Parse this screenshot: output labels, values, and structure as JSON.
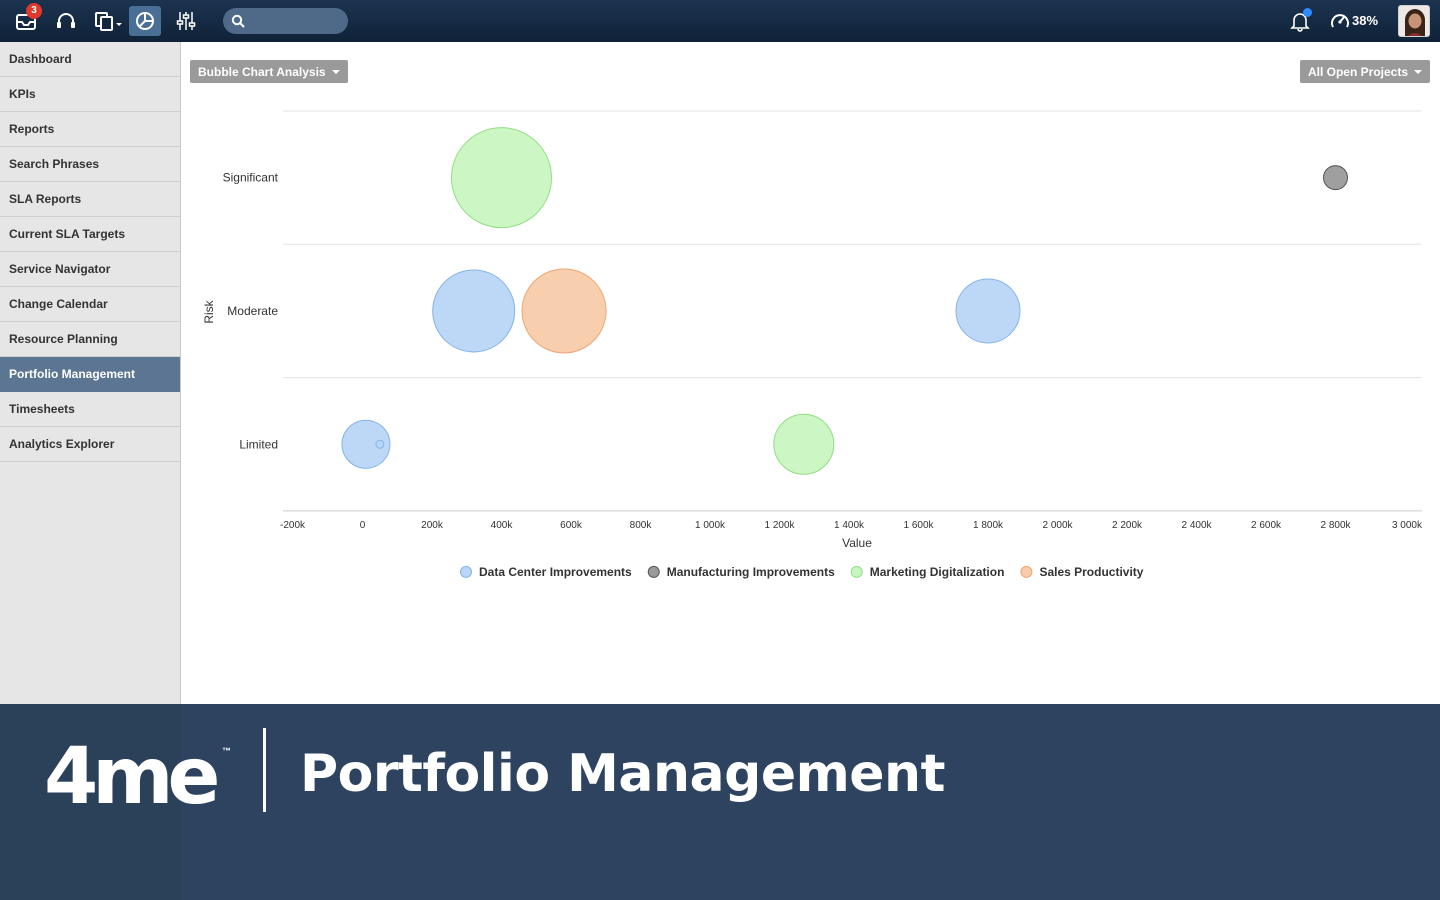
{
  "topbar": {
    "inbox_badge": "3",
    "usage_percent": "38%",
    "icons": [
      "inbox-icon",
      "headset-icon",
      "copy-icon",
      "analytics-icon",
      "sliders-icon",
      "search-icon",
      "bell-icon",
      "speedometer-icon"
    ]
  },
  "sidebar": {
    "items": [
      {
        "label": "Dashboard"
      },
      {
        "label": "KPIs"
      },
      {
        "label": "Reports"
      },
      {
        "label": "Search Phrases"
      },
      {
        "label": "SLA Reports"
      },
      {
        "label": "Current SLA Targets"
      },
      {
        "label": "Service Navigator"
      },
      {
        "label": "Change Calendar"
      },
      {
        "label": "Resource Planning"
      },
      {
        "label": "Portfolio Management",
        "active": true
      },
      {
        "label": "Timesheets"
      },
      {
        "label": "Analytics Explorer"
      }
    ]
  },
  "main": {
    "chart_selector": "Bubble Chart Analysis",
    "project_filter": "All Open Projects"
  },
  "chart_data": {
    "type": "scatter",
    "subtype": "bubble",
    "xlabel": "Value",
    "ylabel": "Risk",
    "xlim": [
      -200000,
      3000000
    ],
    "x_ticks": [
      -200000,
      0,
      200000,
      400000,
      600000,
      800000,
      1000000,
      1200000,
      1400000,
      1600000,
      1800000,
      2000000,
      2200000,
      2400000,
      2600000,
      2800000,
      3000000
    ],
    "x_tick_labels": [
      "-200k",
      "0",
      "200k",
      "400k",
      "600k",
      "800k",
      "1 000k",
      "1 200k",
      "1 400k",
      "1 600k",
      "1 800k",
      "2 000k",
      "2 200k",
      "2 400k",
      "2 600k",
      "2 800k",
      "3 000k"
    ],
    "categories": [
      "Significant",
      "Moderate",
      "Limited"
    ],
    "grid": true,
    "legend_position": "bottom",
    "series": [
      {
        "name": "Data Center Improvements",
        "color": "#b8d6f6",
        "stroke": "#84b4e6",
        "points": [
          {
            "x": 320000,
            "y": "Moderate",
            "size": 41
          },
          {
            "x": 1800000,
            "y": "Moderate",
            "size": 32
          },
          {
            "x": 10000,
            "y": "Limited",
            "size": 24
          },
          {
            "x": 50000,
            "y": "Limited",
            "size": 4
          }
        ]
      },
      {
        "name": "Manufacturing Improvements",
        "color": "#9a9a9a",
        "stroke": "#555555",
        "points": [
          {
            "x": 2800000,
            "y": "Significant",
            "size": 12
          }
        ]
      },
      {
        "name": "Marketing Digitalization",
        "color": "#c9f5c0",
        "stroke": "#92de86",
        "points": [
          {
            "x": 400000,
            "y": "Significant",
            "size": 50
          },
          {
            "x": 1270000,
            "y": "Limited",
            "size": 30
          }
        ]
      },
      {
        "name": "Sales Productivity",
        "color": "#f8ccaa",
        "stroke": "#eda675",
        "points": [
          {
            "x": 580000,
            "y": "Moderate",
            "size": 42
          }
        ]
      }
    ]
  },
  "banner": {
    "logo": "4me",
    "trademark": "™",
    "title": "Portfolio Management"
  }
}
